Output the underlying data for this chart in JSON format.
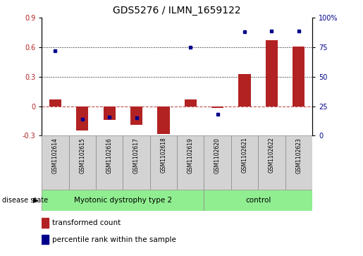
{
  "title": "GDS5276 / ILMN_1659122",
  "samples": [
    "GSM1102614",
    "GSM1102615",
    "GSM1102616",
    "GSM1102617",
    "GSM1102618",
    "GSM1102619",
    "GSM1102620",
    "GSM1102621",
    "GSM1102622",
    "GSM1102623"
  ],
  "red_values": [
    0.07,
    -0.25,
    -0.14,
    -0.19,
    -0.28,
    0.07,
    -0.02,
    0.33,
    0.67,
    0.61
  ],
  "blue_values": [
    0.72,
    0.14,
    0.16,
    0.15,
    null,
    0.75,
    0.18,
    0.88,
    0.89,
    0.89
  ],
  "disease_groups": [
    {
      "label": "Myotonic dystrophy type 2",
      "start": 0,
      "end": 6,
      "color": "#90EE90"
    },
    {
      "label": "control",
      "start": 6,
      "end": 10,
      "color": "#90EE90"
    }
  ],
  "ylim_left": [
    -0.3,
    0.9
  ],
  "ylim_right": [
    0,
    100
  ],
  "yticks_left": [
    -0.3,
    0.0,
    0.3,
    0.6,
    0.9
  ],
  "yticks_right": [
    0,
    25,
    50,
    75,
    100
  ],
  "hlines_dotted": [
    0.3,
    0.6
  ],
  "hline_dashed": 0.0,
  "bar_color": "#B22222",
  "dot_color": "#00008B",
  "background_color": "#FFFFFF",
  "legend_items": [
    {
      "label": "transformed count",
      "color": "#B22222"
    },
    {
      "label": "percentile rank within the sample",
      "color": "#00008B"
    }
  ],
  "disease_state_label": "disease state",
  "bar_width": 0.45
}
